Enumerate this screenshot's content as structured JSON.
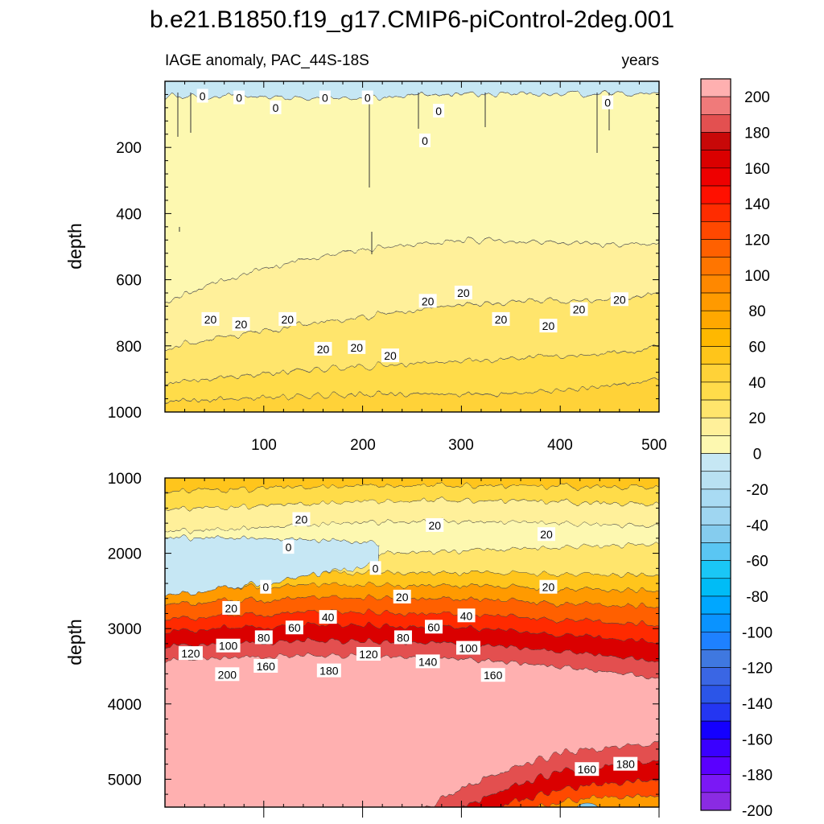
{
  "chart_data": {
    "type": "contour",
    "title": "b.e21.B1850.f19_g17.CMIP6-piControl-2deg.001",
    "colorbar": {
      "levels": [
        -200,
        -190,
        -180,
        -170,
        -160,
        -150,
        -140,
        -130,
        -120,
        -110,
        -100,
        -90,
        -80,
        -70,
        -60,
        -50,
        -40,
        -30,
        -20,
        -10,
        0,
        10,
        20,
        30,
        40,
        50,
        60,
        70,
        80,
        90,
        100,
        110,
        120,
        130,
        140,
        150,
        160,
        170,
        180,
        190,
        200
      ],
      "labels": [
        "200",
        "180",
        "160",
        "140",
        "120",
        "100",
        "80",
        "60",
        "40",
        "20",
        "0",
        "-20",
        "-40",
        "-60",
        "-80",
        "-100",
        "-120",
        "-140",
        "-160",
        "-180",
        "-200"
      ],
      "colors": [
        "#8a2be2",
        "#7b18f5",
        "#5a00ff",
        "#3a00ff",
        "#1400ff",
        "#2436f2",
        "#2b55e8",
        "#3a66e4",
        "#3f78e0",
        "#1e81ff",
        "#0a93ff",
        "#00a7ff",
        "#00bcf6",
        "#1ac7f6",
        "#5ac6f3",
        "#85ccee",
        "#9fd6f1",
        "#a9dbf3",
        "#b9e1f2",
        "#c6e7f4",
        "#fdf8b0",
        "#fff09a",
        "#ffe56c",
        "#ffdc4a",
        "#ffd238",
        "#ffc51a",
        "#ffb800",
        "#ffa800",
        "#ff9a00",
        "#ff8800",
        "#ff7500",
        "#ff6000",
        "#ff4800",
        "#ff2c00",
        "#ff1000",
        "#ee0000",
        "#da0000",
        "#c80808",
        "#e35050",
        "#f07a7a",
        "#ffb0b0"
      ]
    },
    "panels": [
      {
        "subtitle_left": "IAGE anomaly, PAC_44S-18S",
        "subtitle_right": "years",
        "ylabel": "depth",
        "xlim": [
          0,
          500
        ],
        "ylim": [
          1000,
          0
        ],
        "xticks": [
          "100",
          "200",
          "300",
          "400",
          "500"
        ],
        "yticks": [
          "200",
          "400",
          "600",
          "800",
          "1000"
        ],
        "ytick_values": [
          200,
          400,
          600,
          800,
          1000
        ],
        "contour_labels": [
          {
            "text": "0",
            "x": 38,
            "y": 45
          },
          {
            "text": "0",
            "x": 75,
            "y": 50
          },
          {
            "text": "0",
            "x": 112,
            "y": 80
          },
          {
            "text": "0",
            "x": 162,
            "y": 50
          },
          {
            "text": "0",
            "x": 205,
            "y": 50
          },
          {
            "text": "0",
            "x": 263,
            "y": 180
          },
          {
            "text": "0",
            "x": 277,
            "y": 90
          },
          {
            "text": "0",
            "x": 448,
            "y": 65
          },
          {
            "text": "20",
            "x": 46,
            "y": 720
          },
          {
            "text": "20",
            "x": 77,
            "y": 735
          },
          {
            "text": "20",
            "x": 124,
            "y": 720
          },
          {
            "text": "20",
            "x": 160,
            "y": 810
          },
          {
            "text": "20",
            "x": 194,
            "y": 805
          },
          {
            "text": "20",
            "x": 228,
            "y": 830
          },
          {
            "text": "20",
            "x": 266,
            "y": 665
          },
          {
            "text": "20",
            "x": 302,
            "y": 640
          },
          {
            "text": "20",
            "x": 340,
            "y": 720
          },
          {
            "text": "20",
            "x": 388,
            "y": 740
          },
          {
            "text": "20",
            "x": 419,
            "y": 690
          },
          {
            "text": "20",
            "x": 460,
            "y": 660
          }
        ]
      },
      {
        "ylabel": "depth",
        "xlim": [
          0,
          500
        ],
        "ylim": [
          5370,
          1000
        ],
        "yticks": [
          "1000",
          "2000",
          "3000",
          "4000",
          "5000"
        ],
        "ytick_values": [
          1000,
          2000,
          3000,
          4000,
          5000
        ],
        "contour_labels": [
          {
            "text": "20",
            "x": 138,
            "y": 1550
          },
          {
            "text": "0",
            "x": 125,
            "y": 1920
          },
          {
            "text": "0",
            "x": 213,
            "y": 2200
          },
          {
            "text": "20",
            "x": 273,
            "y": 1630
          },
          {
            "text": "20",
            "x": 386,
            "y": 1750
          },
          {
            "text": "20",
            "x": 388,
            "y": 2450
          },
          {
            "text": "0",
            "x": 102,
            "y": 2450
          },
          {
            "text": "20",
            "x": 67,
            "y": 2730
          },
          {
            "text": "40",
            "x": 165,
            "y": 2850
          },
          {
            "text": "20",
            "x": 240,
            "y": 2580
          },
          {
            "text": "40",
            "x": 305,
            "y": 2830
          },
          {
            "text": "60",
            "x": 131,
            "y": 2990
          },
          {
            "text": "60",
            "x": 272,
            "y": 2980
          },
          {
            "text": "80",
            "x": 100,
            "y": 3120
          },
          {
            "text": "80",
            "x": 241,
            "y": 3120
          },
          {
            "text": "100",
            "x": 64,
            "y": 3230
          },
          {
            "text": "100",
            "x": 307,
            "y": 3260
          },
          {
            "text": "120",
            "x": 26,
            "y": 3330
          },
          {
            "text": "120",
            "x": 206,
            "y": 3340
          },
          {
            "text": "140",
            "x": 266,
            "y": 3440
          },
          {
            "text": "160",
            "x": 102,
            "y": 3500
          },
          {
            "text": "160",
            "x": 332,
            "y": 3620
          },
          {
            "text": "180",
            "x": 166,
            "y": 3560
          },
          {
            "text": "200",
            "x": 63,
            "y": 3610
          },
          {
            "text": "160",
            "x": 427,
            "y": 4870
          },
          {
            "text": "180",
            "x": 466,
            "y": 4800
          }
        ]
      }
    ]
  }
}
